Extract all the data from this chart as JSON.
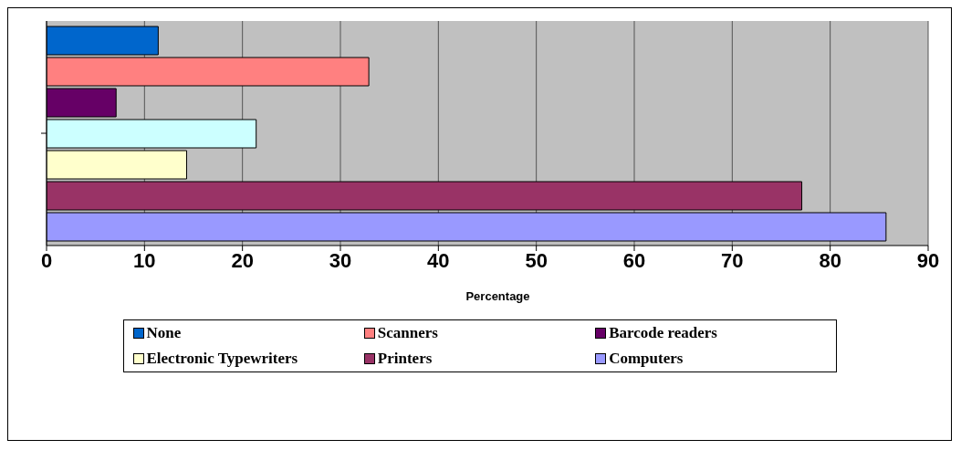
{
  "chart_data": {
    "type": "bar",
    "orientation": "horizontal",
    "xlabel": "Percentage",
    "categories": [
      null
    ],
    "series": [
      {
        "name": "None",
        "color": "#0066cc",
        "values": [
          11.4
        ]
      },
      {
        "name": "Scanners",
        "color": "#ff8080",
        "values": [
          32.9
        ]
      },
      {
        "name": "Barcode readers",
        "color": "#660066",
        "values": [
          7.1
        ]
      },
      {
        "color": "#ccffff",
        "values": [
          21.4
        ]
      },
      {
        "name": "Electronic Typewriters",
        "color": "#ffffcc",
        "values": [
          14.3
        ]
      },
      {
        "name": "Printers",
        "color": "#993366",
        "values": [
          77.1
        ]
      },
      {
        "name": "Computers",
        "color": "#9999ff",
        "values": [
          85.7
        ]
      }
    ],
    "xlim": [
      0,
      90
    ],
    "xticks": [
      0,
      10,
      20,
      30,
      40,
      50,
      60,
      70,
      80,
      90
    ],
    "grid": "x",
    "legend": "bottom"
  }
}
